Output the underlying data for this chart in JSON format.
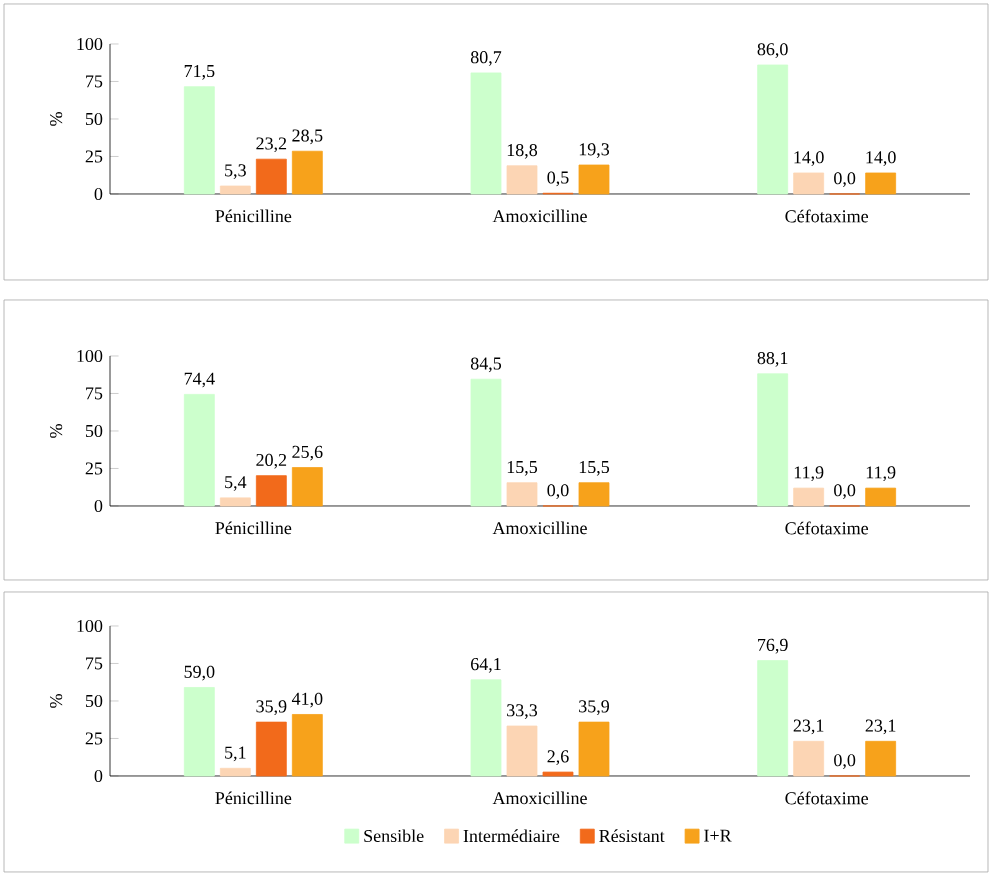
{
  "chart_data": [
    {
      "type": "bar",
      "ylabel": "%",
      "categories": [
        "Pénicilline",
        "Amoxicilline",
        "Céfotaxime"
      ],
      "ylim": [
        0,
        100
      ],
      "yticks": [
        0,
        25,
        50,
        75,
        100
      ],
      "series": [
        {
          "color": "#ccffcc",
          "values": [
            71.5,
            80.7,
            86.0
          ],
          "value_labels": [
            "71,5",
            "80,7",
            "86,0"
          ]
        },
        {
          "color": "#fcd5b4",
          "values": [
            5.3,
            18.8,
            14.0
          ],
          "value_labels": [
            "5,3",
            "18,8",
            "14,0"
          ]
        },
        {
          "color": "#f26a1b",
          "values": [
            23.2,
            0.5,
            0.0
          ],
          "value_labels": [
            "23,2",
            "0,5",
            "0,0"
          ]
        },
        {
          "color": "#f7a21b",
          "values": [
            28.5,
            19.3,
            14.0
          ],
          "value_labels": [
            "28,5",
            "19,3",
            "14,0"
          ]
        }
      ]
    },
    {
      "type": "bar",
      "ylabel": "%",
      "categories": [
        "Pénicilline",
        "Amoxicilline",
        "Céfotaxime"
      ],
      "ylim": [
        0,
        100
      ],
      "yticks": [
        0,
        25,
        50,
        75,
        100
      ],
      "series": [
        {
          "color": "#ccffcc",
          "values": [
            74.4,
            84.5,
            88.1
          ],
          "value_labels": [
            "74,4",
            "84,5",
            "88,1"
          ]
        },
        {
          "color": "#fcd5b4",
          "values": [
            5.4,
            15.5,
            11.9
          ],
          "value_labels": [
            "5,4",
            "15,5",
            "11,9"
          ]
        },
        {
          "color": "#f26a1b",
          "values": [
            20.2,
            0.0,
            0.0
          ],
          "value_labels": [
            "20,2",
            "0,0",
            "0,0"
          ]
        },
        {
          "color": "#f7a21b",
          "values": [
            25.6,
            15.5,
            11.9
          ],
          "value_labels": [
            "25,6",
            "15,5",
            "11,9"
          ]
        }
      ]
    },
    {
      "type": "bar",
      "ylabel": "%",
      "categories": [
        "Pénicilline",
        "Amoxicilline",
        "Céfotaxime"
      ],
      "ylim": [
        0,
        100
      ],
      "yticks": [
        0,
        25,
        50,
        75,
        100
      ],
      "legend": "bottom",
      "series": [
        {
          "name": "Sensible",
          "color": "#ccffcc",
          "values": [
            59.0,
            64.1,
            76.9
          ],
          "value_labels": [
            "59,0",
            "64,1",
            "76,9"
          ]
        },
        {
          "name": "Intermédiaire",
          "color": "#fcd5b4",
          "values": [
            5.1,
            33.3,
            23.1
          ],
          "value_labels": [
            "5,1",
            "33,3",
            "23,1"
          ]
        },
        {
          "name": "Résistant",
          "color": "#f26a1b",
          "values": [
            35.9,
            2.6,
            0.0
          ],
          "value_labels": [
            "35,9",
            "2,6",
            "0,0"
          ]
        },
        {
          "name": "I+R",
          "color": "#f7a21b",
          "values": [
            41.0,
            35.9,
            23.1
          ],
          "value_labels": [
            "41,0",
            "35,9",
            "23,1"
          ]
        }
      ]
    }
  ]
}
